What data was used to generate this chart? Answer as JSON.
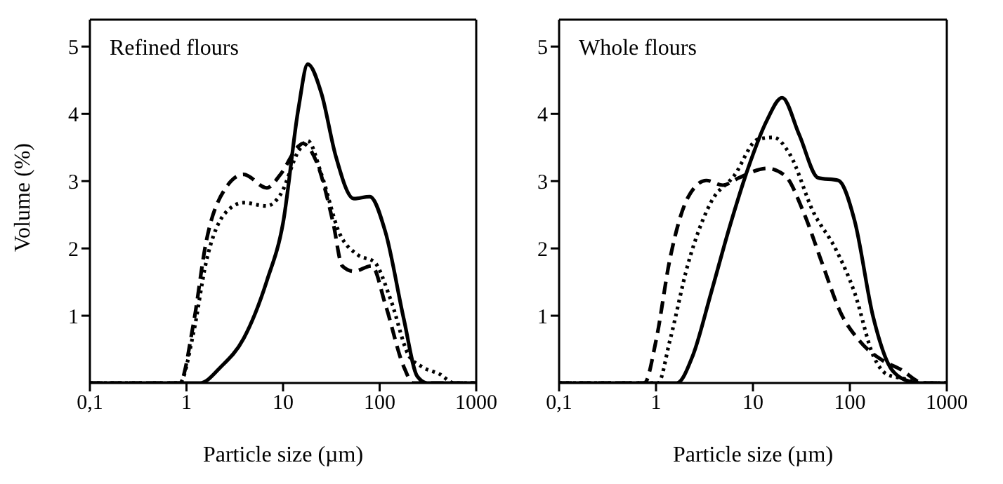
{
  "chart_data": [
    {
      "type": "line",
      "title": "Refined flours",
      "xlabel": "Particle size (µm)",
      "ylabel": "Volume (%)",
      "log": "x",
      "marker": "none",
      "xlim": [
        0.1,
        1000
      ],
      "xticks": [
        {
          "value": 0.1,
          "label": "0,1"
        },
        1,
        10,
        100,
        1000
      ],
      "ylim": [
        0,
        5.4
      ],
      "yticks": [
        1,
        2,
        3,
        4,
        5
      ],
      "series": [
        {
          "color": "#000000",
          "line_style": "solid",
          "x": [
            0.1,
            1.38,
            2.27,
            3.9,
            6.8,
            10,
            14.5,
            18,
            25,
            35,
            54,
            79,
            115,
            178,
            245,
            310,
            1000
          ],
          "values": [
            0,
            0,
            0.24,
            0.66,
            1.52,
            2.38,
            4.1,
            4.74,
            4.3,
            3.38,
            2.74,
            2.77,
            2.24,
            0.95,
            0.1,
            0,
            0
          ]
        },
        {
          "color": "#000000",
          "line_style": "dashed",
          "x": [
            0.1,
            0.85,
            1.18,
            1.6,
            2.5,
            3.9,
            6.8,
            9.4,
            14.5,
            16,
            22,
            33,
            41,
            54,
            83,
            115,
            178,
            222,
            1000
          ],
          "values": [
            0,
            0,
            0.88,
            2.1,
            2.88,
            3.1,
            2.9,
            3.1,
            3.52,
            3.56,
            3.3,
            2.38,
            1.74,
            1.66,
            1.74,
            1.16,
            0.24,
            0,
            0
          ]
        },
        {
          "color": "#000000",
          "line_style": "dotted",
          "x": [
            0.1,
            0.85,
            1.18,
            1.6,
            2.5,
            3.9,
            6.8,
            9.4,
            14.5,
            18,
            25,
            38,
            60,
            88,
            130,
            200,
            275,
            420,
            590,
            1000
          ],
          "values": [
            0,
            0,
            0.74,
            1.8,
            2.52,
            2.68,
            2.63,
            2.8,
            3.45,
            3.6,
            3.1,
            2.24,
            1.9,
            1.8,
            1.24,
            0.41,
            0.24,
            0.13,
            0,
            0
          ]
        }
      ]
    },
    {
      "type": "line",
      "title": "Whole flours",
      "xlabel": "Particle size (µm)",
      "log": "x",
      "marker": "none",
      "xlim": [
        0.1,
        1000
      ],
      "xticks": [
        {
          "value": 0.1,
          "label": "0,1"
        },
        1,
        10,
        100,
        1000
      ],
      "ylim": [
        0,
        5.4
      ],
      "yticks": [
        1,
        2,
        3,
        4,
        5
      ],
      "series": [
        {
          "color": "#000000",
          "line_style": "solid",
          "x": [
            0.1,
            1.64,
            2.4,
            3.7,
            5.8,
            8.9,
            13.9,
            20,
            30,
            47,
            76,
            112,
            174,
            270,
            417,
            515,
            1000
          ],
          "values": [
            0,
            0,
            0.41,
            1.34,
            2.34,
            3.19,
            3.9,
            4.24,
            3.69,
            3.05,
            3.01,
            2.41,
            0.98,
            0.2,
            0.02,
            0,
            0
          ]
        },
        {
          "color": "#000000",
          "line_style": "dashed",
          "x": [
            0.1,
            0.76,
            1,
            1.39,
            2.14,
            3.3,
            4.9,
            7.2,
            13.9,
            21.5,
            33,
            52,
            80,
            125,
            215,
            335,
            575,
            1000
          ],
          "values": [
            0,
            0,
            0.63,
            1.84,
            2.76,
            3.01,
            2.94,
            3.05,
            3.19,
            3.08,
            2.55,
            1.77,
            1.05,
            0.63,
            0.34,
            0.2,
            0,
            0
          ]
        },
        {
          "color": "#000000",
          "line_style": "dotted",
          "x": [
            0.1,
            1.05,
            1.39,
            2.14,
            3.7,
            6.4,
            11.2,
            16.3,
            24,
            41.7,
            72,
            112,
            174,
            240,
            370,
            515,
            1000
          ],
          "values": [
            0,
            0,
            0.63,
            1.77,
            2.69,
            3.08,
            3.62,
            3.65,
            3.4,
            2.55,
            1.98,
            1.34,
            0.41,
            0.13,
            0.06,
            0,
            0
          ]
        }
      ]
    }
  ]
}
